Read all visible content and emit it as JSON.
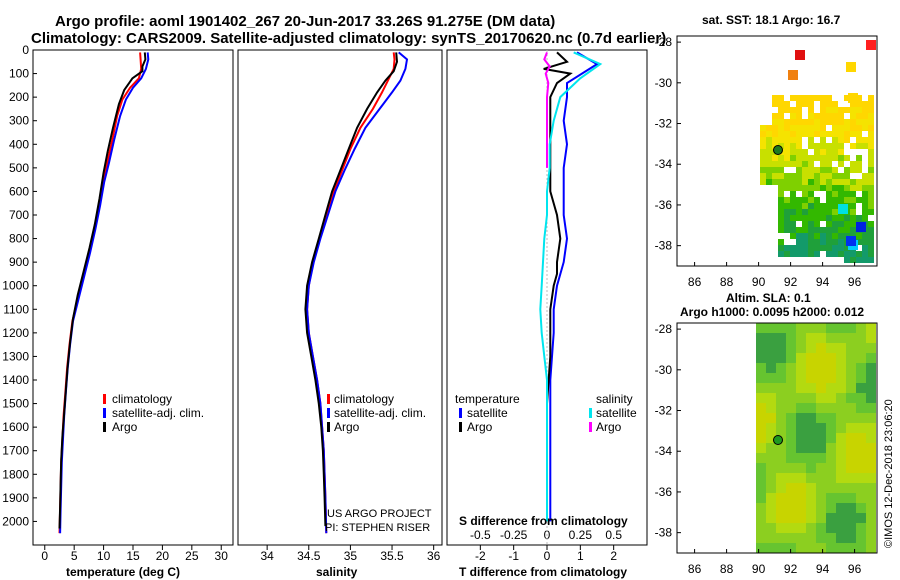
{
  "header": {
    "line1": "Argo profile: aoml 1901402_267 20-Jun-2017 33.26S 91.275E (DM data)",
    "line2": "Climatology: CARS2009. Satellite-adjusted climatology: synTS_20170620.nc (0.7d earlier)"
  },
  "colors": {
    "climatology": "#ff0000",
    "satellite": "#0000ff",
    "argo": "#000000",
    "sat_salinity": "#00e5ee",
    "argo_salinity": "#ff00ff"
  },
  "chart_data": [
    {
      "id": "temperature",
      "type": "line",
      "xlabel": "temperature (deg C)",
      "ylabel": "",
      "xlim": [
        -2,
        32
      ],
      "ylim": [
        2100,
        0
      ],
      "xticks": [
        0,
        5,
        10,
        15,
        20,
        25,
        30
      ],
      "yticks": [
        0,
        100,
        200,
        300,
        400,
        500,
        600,
        700,
        800,
        900,
        1000,
        1100,
        1200,
        1300,
        1400,
        1500,
        1600,
        1700,
        1800,
        1900,
        2000
      ],
      "legend": [
        "climatology",
        "satellite-adj. clim.",
        "Argo"
      ],
      "series": [
        {
          "name": "climatology",
          "color": "#ff0000",
          "points": [
            [
              16.2,
              10
            ],
            [
              16.3,
              40
            ],
            [
              16.4,
              80
            ],
            [
              16.0,
              120
            ],
            [
              14.5,
              160
            ],
            [
              13.2,
              210
            ],
            [
              12.3,
              280
            ],
            [
              11.5,
              380
            ],
            [
              10.6,
              480
            ],
            [
              9.9,
              560
            ],
            [
              9.2,
              660
            ],
            [
              8.5,
              760
            ],
            [
              7.6,
              860
            ],
            [
              6.6,
              960
            ],
            [
              5.6,
              1060
            ],
            [
              4.7,
              1150
            ],
            [
              4.2,
              1250
            ],
            [
              3.8,
              1350
            ],
            [
              3.5,
              1450
            ],
            [
              3.2,
              1550
            ],
            [
              3.0,
              1650
            ],
            [
              2.8,
              1750
            ],
            [
              2.7,
              1850
            ],
            [
              2.6,
              1950
            ],
            [
              2.5,
              2050
            ]
          ]
        },
        {
          "name": "satellite-adj. clim.",
          "color": "#0000ff",
          "points": [
            [
              17.5,
              10
            ],
            [
              17.6,
              40
            ],
            [
              17.2,
              80
            ],
            [
              16.4,
              120
            ],
            [
              15.0,
              160
            ],
            [
              13.8,
              210
            ],
            [
              12.8,
              280
            ],
            [
              11.8,
              380
            ],
            [
              10.9,
              480
            ],
            [
              10.1,
              560
            ],
            [
              9.4,
              660
            ],
            [
              8.6,
              760
            ],
            [
              7.7,
              860
            ],
            [
              6.7,
              960
            ],
            [
              5.7,
              1060
            ],
            [
              4.8,
              1150
            ],
            [
              4.3,
              1250
            ],
            [
              3.9,
              1350
            ],
            [
              3.6,
              1450
            ],
            [
              3.3,
              1550
            ],
            [
              3.1,
              1650
            ],
            [
              2.9,
              1750
            ],
            [
              2.8,
              1850
            ],
            [
              2.7,
              1950
            ],
            [
              2.6,
              2050
            ]
          ]
        },
        {
          "name": "Argo",
          "color": "#000000",
          "points": [
            [
              17.0,
              10
            ],
            [
              17.1,
              40
            ],
            [
              16.6,
              70
            ],
            [
              16.6,
              90
            ],
            [
              14.9,
              120
            ],
            [
              13.5,
              170
            ],
            [
              12.6,
              230
            ],
            [
              11.6,
              330
            ],
            [
              10.7,
              430
            ],
            [
              10.0,
              520
            ],
            [
              9.3,
              630
            ],
            [
              8.5,
              740
            ],
            [
              7.6,
              840
            ],
            [
              6.6,
              940
            ],
            [
              5.6,
              1040
            ],
            [
              4.8,
              1140
            ],
            [
              4.3,
              1240
            ],
            [
              3.9,
              1340
            ],
            [
              3.6,
              1440
            ],
            [
              3.3,
              1540
            ],
            [
              3.0,
              1640
            ],
            [
              2.8,
              1740
            ],
            [
              2.7,
              1840
            ],
            [
              2.6,
              1940
            ],
            [
              2.5,
              2030
            ]
          ]
        }
      ]
    },
    {
      "id": "salinity",
      "type": "line",
      "xlabel": "salinity",
      "ylabel": "",
      "xlim": [
        33.65,
        36.1
      ],
      "ylim": [
        2100,
        0
      ],
      "xticks": [
        34,
        34.5,
        35,
        35.5,
        36
      ],
      "xticklabels": [
        "34",
        "34.5",
        "35",
        "35.5",
        "36"
      ],
      "legend": [
        "climatology",
        "satellite-adj. clim.",
        "Argo"
      ],
      "annotation": [
        "US ARGO PROJECT",
        "PI: STEPHEN RISER"
      ],
      "series": [
        {
          "name": "climatology",
          "color": "#ff0000",
          "points": [
            [
              35.52,
              10
            ],
            [
              35.53,
              40
            ],
            [
              35.52,
              80
            ],
            [
              35.45,
              130
            ],
            [
              35.38,
              180
            ],
            [
              35.27,
              250
            ],
            [
              35.12,
              330
            ],
            [
              35.0,
              420
            ],
            [
              34.9,
              510
            ],
            [
              34.8,
              600
            ],
            [
              34.72,
              700
            ],
            [
              34.63,
              800
            ],
            [
              34.55,
              900
            ],
            [
              34.5,
              1000
            ],
            [
              34.48,
              1100
            ],
            [
              34.5,
              1200
            ],
            [
              34.55,
              1300
            ],
            [
              34.6,
              1400
            ],
            [
              34.64,
              1500
            ],
            [
              34.66,
              1600
            ],
            [
              34.68,
              1700
            ],
            [
              34.69,
              1800
            ],
            [
              34.7,
              1900
            ],
            [
              34.71,
              2050
            ]
          ]
        },
        {
          "name": "satellite-adj. clim.",
          "color": "#0000ff",
          "points": [
            [
              35.58,
              10
            ],
            [
              35.68,
              40
            ],
            [
              35.66,
              80
            ],
            [
              35.6,
              130
            ],
            [
              35.5,
              180
            ],
            [
              35.35,
              250
            ],
            [
              35.18,
              330
            ],
            [
              35.05,
              420
            ],
            [
              34.93,
              510
            ],
            [
              34.82,
              600
            ],
            [
              34.73,
              700
            ],
            [
              34.64,
              800
            ],
            [
              34.56,
              900
            ],
            [
              34.5,
              1000
            ],
            [
              34.48,
              1100
            ],
            [
              34.5,
              1200
            ],
            [
              34.55,
              1300
            ],
            [
              34.6,
              1400
            ],
            [
              34.64,
              1500
            ],
            [
              34.66,
              1600
            ],
            [
              34.68,
              1700
            ],
            [
              34.69,
              1800
            ],
            [
              34.7,
              1900
            ],
            [
              34.71,
              2050
            ]
          ]
        },
        {
          "name": "Argo",
          "color": "#000000",
          "points": [
            [
              35.55,
              10
            ],
            [
              35.56,
              50
            ],
            [
              35.52,
              90
            ],
            [
              35.42,
              130
            ],
            [
              35.32,
              180
            ],
            [
              35.2,
              250
            ],
            [
              35.08,
              330
            ],
            [
              34.98,
              420
            ],
            [
              34.88,
              510
            ],
            [
              34.78,
              600
            ],
            [
              34.7,
              700
            ],
            [
              34.62,
              800
            ],
            [
              34.54,
              900
            ],
            [
              34.48,
              1000
            ],
            [
              34.46,
              1100
            ],
            [
              34.48,
              1200
            ],
            [
              34.53,
              1300
            ],
            [
              34.58,
              1400
            ],
            [
              34.62,
              1500
            ],
            [
              34.65,
              1600
            ],
            [
              34.67,
              1700
            ],
            [
              34.68,
              1800
            ],
            [
              34.69,
              1900
            ],
            [
              34.7,
              2020
            ]
          ]
        }
      ]
    },
    {
      "id": "differences",
      "type": "line",
      "xlabel": "T difference from climatology",
      "x2label": "S difference from climatology",
      "xlim": [
        -3.0,
        3.0
      ],
      "ylim": [
        2100,
        0
      ],
      "xticks": [
        -2,
        -1,
        0,
        1,
        2
      ],
      "x2ticks": [
        "-0.5",
        "-0.25",
        "0",
        "0.25",
        "0.5"
      ],
      "legend_left_title": "temperature",
      "legend_right_title": "salinity",
      "legend": [
        "satellite",
        "Argo",
        "satellite",
        "Argo"
      ],
      "series": [
        {
          "name": "T satellite",
          "color": "#0000ff",
          "points": [
            [
              0.9,
              10
            ],
            [
              1.5,
              60
            ],
            [
              0.6,
              140
            ],
            [
              0.6,
              200
            ],
            [
              0.5,
              300
            ],
            [
              0.6,
              400
            ],
            [
              0.5,
              500
            ],
            [
              0.5,
              600
            ],
            [
              0.5,
              700
            ],
            [
              0.6,
              800
            ],
            [
              0.5,
              900
            ],
            [
              0.3,
              1000
            ],
            [
              0.2,
              1100
            ],
            [
              0.2,
              1200
            ],
            [
              0.1,
              1400
            ],
            [
              0.1,
              1600
            ],
            [
              0.1,
              1800
            ],
            [
              0.1,
              2000
            ]
          ]
        },
        {
          "name": "T Argo",
          "color": "#000000",
          "points": [
            [
              0.3,
              10
            ],
            [
              0.6,
              50
            ],
            [
              -0.1,
              80
            ],
            [
              0.7,
              100
            ],
            [
              0.3,
              140
            ],
            [
              0.1,
              200
            ],
            [
              0.1,
              300
            ],
            [
              0.1,
              400
            ],
            [
              0.1,
              500
            ],
            [
              0.1,
              600
            ],
            [
              0.3,
              700
            ],
            [
              0.4,
              800
            ],
            [
              0.3,
              900
            ],
            [
              0.3,
              950
            ],
            [
              0.2,
              1000
            ],
            [
              0.1,
              1100
            ],
            [
              0.1,
              1300
            ],
            [
              0.0,
              1500
            ],
            [
              0.0,
              1700
            ],
            [
              0.0,
              2000
            ]
          ]
        },
        {
          "name": "S satellite",
          "color": "#00e5ee",
          "points": [
            [
              0.2,
              10
            ],
            [
              0.4,
              60
            ],
            [
              0.25,
              120
            ],
            [
              0.1,
              200
            ],
            [
              0.05,
              300
            ],
            [
              0.02,
              400
            ],
            [
              0.02,
              500
            ],
            [
              0.0,
              600
            ],
            [
              0.0,
              700
            ],
            [
              -0.02,
              800
            ],
            [
              -0.03,
              900
            ],
            [
              -0.04,
              1000
            ],
            [
              -0.05,
              1100
            ],
            [
              -0.04,
              1200
            ],
            [
              -0.02,
              1300
            ],
            [
              0.0,
              1400
            ],
            [
              0.0,
              1600
            ],
            [
              0.0,
              1800
            ],
            [
              0.0,
              2000
            ]
          ]
        },
        {
          "name": "S Argo",
          "color": "#ff00ff",
          "points": [
            [
              0.0,
              10
            ],
            [
              -0.02,
              40
            ],
            [
              0.02,
              70
            ],
            [
              -0.01,
              100
            ],
            [
              0.01,
              140
            ],
            [
              0.0,
              200
            ],
            [
              0.0,
              300
            ],
            [
              0.0,
              400
            ],
            [
              0.0,
              500
            ]
          ]
        }
      ]
    },
    {
      "id": "sst-map",
      "type": "heatmap",
      "title": "sat. SST: 18.1 Argo: 16.7",
      "xticks": [
        86,
        88,
        90,
        92,
        94,
        96
      ],
      "yticks": [
        -28,
        -30,
        -32,
        -34,
        -36,
        -38
      ]
    },
    {
      "id": "sla-map",
      "type": "heatmap",
      "title": "Altim. SLA: 0.1",
      "subtitle": "Argo h1000: 0.0095 h2000: 0.012",
      "xticks": [
        86,
        88,
        90,
        92,
        94,
        96
      ],
      "yticks": [
        -28,
        -30,
        -32,
        -34,
        -36,
        -38
      ]
    }
  ],
  "footer": {
    "credit": "©IMOS 12-Dec-2018 23:06:20"
  }
}
